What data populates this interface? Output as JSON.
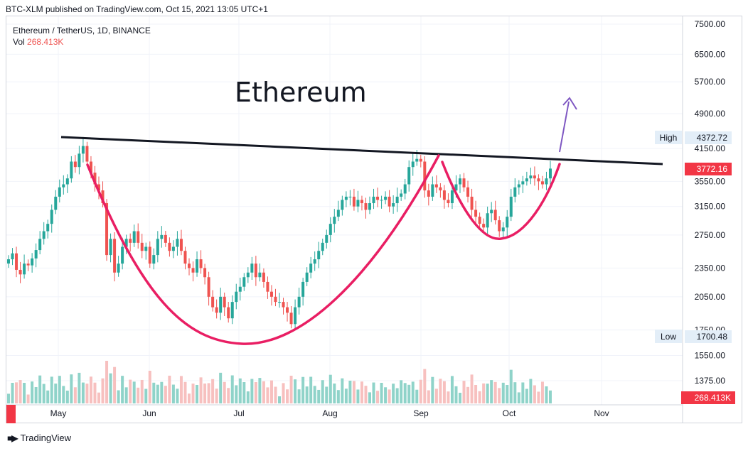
{
  "header": {
    "published": "BTC-XLM published on TradingView.com, Oct 15, 2021 13:05 UTC+1"
  },
  "legend": {
    "symbol": "Ethereum / TetherUS, 1D, BINANCE",
    "vol_label": "Vol",
    "vol_value": "268.413K"
  },
  "annotation_title": "Ethereum",
  "footer": {
    "brand": "TradingView"
  },
  "colors": {
    "up": "#26a69a",
    "down": "#ef5350",
    "vol_up": "#8fd3c9",
    "vol_down": "#f7c0bf",
    "trendline": "#131722",
    "cup": "#e91e63",
    "arrow": "#7e57c2",
    "price_tag": "#f23645"
  },
  "chart_data": {
    "type": "candlestick",
    "x_labels": [
      "May",
      "Jun",
      "Jul",
      "Aug",
      "Sep",
      "Oct",
      "Nov"
    ],
    "y_ticks": [
      "7500.00",
      "6500.00",
      "5700.00",
      "4900.00",
      "4150.00",
      "3550.00",
      "3150.00",
      "2750.00",
      "2350.00",
      "2050.00",
      "1750.00",
      "1550.00",
      "1375.00"
    ],
    "y_scale": "log",
    "high": {
      "label": "High",
      "value": "4372.72"
    },
    "low": {
      "label": "Low",
      "value": "1700.48"
    },
    "last_price": "3772.16",
    "last_volume": "268.413K",
    "series_close": [
      2450,
      2520,
      2330,
      2280,
      2400,
      2380,
      2460,
      2560,
      2700,
      2800,
      2900,
      3100,
      3300,
      3450,
      3500,
      3600,
      3900,
      3800,
      4050,
      4200,
      3900,
      3700,
      3500,
      3400,
      3200,
      2500,
      2700,
      2300,
      2400,
      2600,
      2700,
      2650,
      2800,
      2650,
      2550,
      2600,
      2400,
      2500,
      2700,
      2750,
      2650,
      2550,
      2600,
      2700,
      2550,
      2400,
      2350,
      2300,
      2450,
      2350,
      2250,
      2050,
      1950,
      1900,
      2050,
      1950,
      1850,
      2000,
      2100,
      2150,
      2250,
      2300,
      2400,
      2250,
      2300,
      2200,
      2100,
      2050,
      2000,
      2000,
      1950,
      1900,
      1800,
      1950,
      2050,
      2200,
      2300,
      2400,
      2450,
      2550,
      2650,
      2750,
      2900,
      3000,
      3100,
      3250,
      3300,
      3300,
      3150,
      3250,
      3200,
      3100,
      3200,
      3300,
      3250,
      3250,
      3300,
      3150,
      3200,
      3300,
      3350,
      3500,
      3800,
      3900,
      3950,
      3900,
      3400,
      3300,
      3500,
      3450,
      3400,
      3250,
      3200,
      3400,
      3500,
      3600,
      3450,
      3300,
      3100,
      3000,
      2900,
      2850,
      3050,
      3100,
      2950,
      2800,
      2850,
      3000,
      3300,
      3450,
      3500,
      3550,
      3600,
      3650,
      3600,
      3550,
      3500,
      3600,
      3772
    ]
  }
}
